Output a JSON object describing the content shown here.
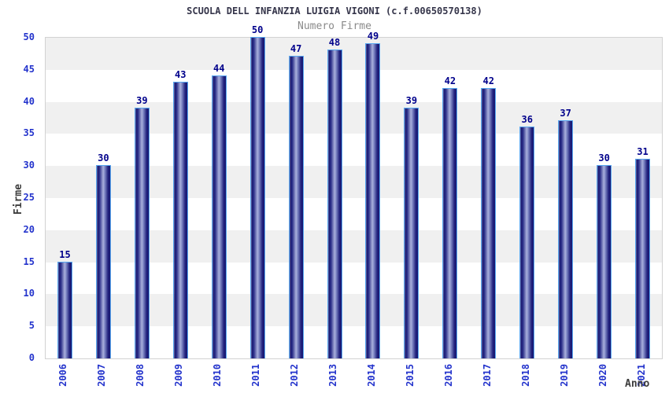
{
  "header": {
    "title": "SCUOLA DELL INFANZIA LUIGIA VIGONI (c.f.00650570138)",
    "subtitle": "Numero Firme"
  },
  "chart_data": {
    "type": "bar",
    "title": "SCUOLA DELL INFANZIA LUIGIA VIGONI (c.f.00650570138)",
    "subtitle": "Numero Firme",
    "categories": [
      "2006",
      "2007",
      "2008",
      "2009",
      "2010",
      "2011",
      "2012",
      "2013",
      "2014",
      "2015",
      "2016",
      "2017",
      "2018",
      "2019",
      "2020",
      "2021"
    ],
    "values": [
      15,
      30,
      39,
      43,
      44,
      50,
      47,
      48,
      49,
      39,
      42,
      42,
      36,
      37,
      30,
      31
    ],
    "xlabel": "Anno",
    "ylabel": "Firme",
    "ylim": [
      0,
      50
    ],
    "ytick_step": 5,
    "yticks": [
      0,
      5,
      10,
      15,
      20,
      25,
      30,
      35,
      40,
      45,
      50
    ],
    "grid": "alternating-horizontal-bands",
    "legend_position": "none",
    "colors": {
      "title": "#35354a",
      "subtitle": "#8a8a8a",
      "value_label": "#00008b",
      "tick_label": "#2333cc",
      "axis_label": "#3c3c3c",
      "bar_dark": "#17176f",
      "bar_light": "#a9b0dc",
      "bar_border": "#58a7f0",
      "band_gray": "#f0f0f0",
      "plot_border": "#d2d2d2"
    }
  }
}
